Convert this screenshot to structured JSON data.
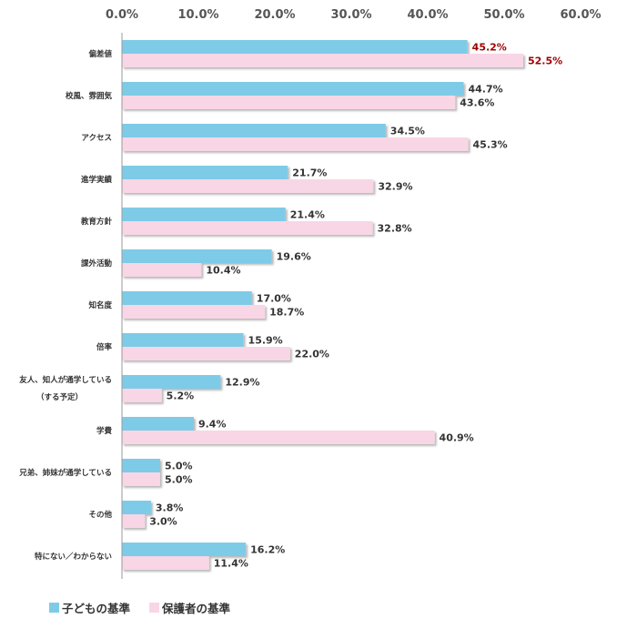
{
  "chart_data": {
    "type": "bar",
    "orientation": "horizontal",
    "categories": [
      "偏差値",
      "校風、雰囲気",
      "アクセス",
      "進学実績",
      "教育方針",
      "課外活動",
      "知名度",
      "倍率",
      "友人、知人が通学している\n（する予定）",
      "学費",
      "兄弟、姉妹が通学している",
      "その他",
      "特にない／わからない"
    ],
    "series": [
      {
        "name": "子どもの基準",
        "color": "#7ecbe8",
        "values": [
          45.2,
          44.7,
          34.5,
          21.7,
          21.4,
          19.6,
          17.0,
          15.9,
          12.9,
          9.4,
          5.0,
          3.8,
          16.2
        ],
        "labels": [
          "45.2%",
          "44.7%",
          "34.5%",
          "21.7%",
          "21.4%",
          "19.6%",
          "17.0%",
          "15.9%",
          "12.9%",
          "9.4%",
          "5.0%",
          "3.8%",
          "16.2%"
        ]
      },
      {
        "name": "保護者の基準",
        "color": "#f8d6e6",
        "values": [
          52.5,
          43.6,
          45.3,
          32.9,
          32.8,
          10.4,
          18.7,
          22.0,
          5.2,
          40.9,
          5.0,
          3.0,
          11.4
        ],
        "labels": [
          "52.5%",
          "43.6%",
          "45.3%",
          "32.9%",
          "32.8%",
          "10.4%",
          "18.7%",
          "22.0%",
          "5.2%",
          "40.9%",
          "5.0%",
          "3.0%",
          "11.4%"
        ]
      }
    ],
    "xlim": [
      0,
      60
    ],
    "x_ticks": [
      "0.0%",
      "10.0%",
      "20.0%",
      "30.0%",
      "40.0%",
      "50.0%",
      "60.0%"
    ],
    "highlight_label_color": "#a00000",
    "label_color": "#333333",
    "axis_color": "#9a9a9a",
    "grid": false,
    "legend_position": "bottom-left"
  }
}
